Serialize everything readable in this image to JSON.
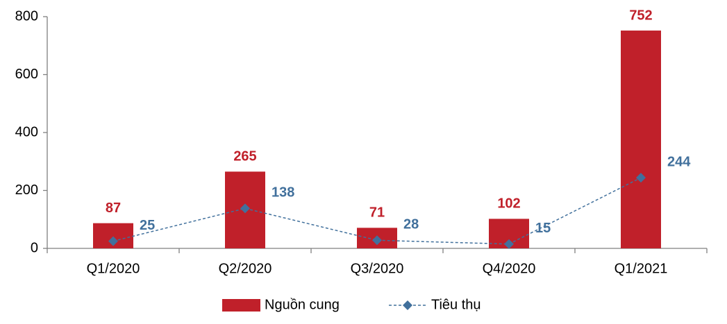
{
  "chart_data": {
    "type": "bar",
    "categories": [
      "Q1/2020",
      "Q2/2020",
      "Q3/2020",
      "Q4/2020",
      "Q1/2021"
    ],
    "series": [
      {
        "name": "Nguồn cung",
        "type": "bar",
        "color": "#c0202a",
        "values": [
          87,
          265,
          71,
          102,
          752
        ]
      },
      {
        "name": "Tiêu thụ",
        "type": "line",
        "color": "#41709c",
        "values": [
          25,
          138,
          28,
          15,
          244
        ]
      }
    ],
    "ylim": [
      0,
      800
    ],
    "yticks": [
      0,
      200,
      400,
      600,
      800
    ],
    "grid": false,
    "legend": "bottom"
  }
}
